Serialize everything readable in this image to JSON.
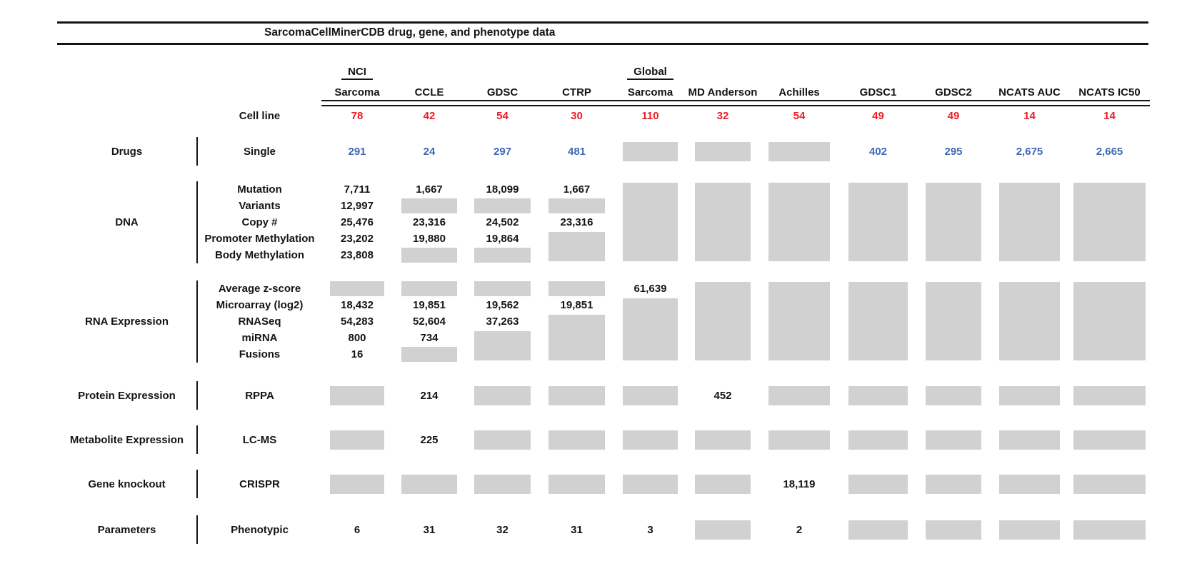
{
  "title": "SarcomaCellMinerCDB drug, gene, and phenotype data",
  "colors": {
    "cell_line_count": "#ed1c24",
    "drug_count": "#3e68b5",
    "missing_data_box": "#d1d1d1",
    "rule": "#141414"
  },
  "columns": [
    {
      "top": "NCI",
      "label": "Sarcoma"
    },
    {
      "top": "",
      "label": "CCLE"
    },
    {
      "top": "",
      "label": "GDSC"
    },
    {
      "top": "",
      "label": "CTRP"
    },
    {
      "top": "Global",
      "label": "Sarcoma"
    },
    {
      "top": "",
      "label": "MD Anderson"
    },
    {
      "top": "",
      "label": "Achilles"
    },
    {
      "top": "",
      "label": "GDSC1"
    },
    {
      "top": "",
      "label": "GDSC2"
    },
    {
      "top": "",
      "label": "NCATS AUC"
    },
    {
      "top": "",
      "label": "NCATS IC50"
    }
  ],
  "cell_line": {
    "label": "Cell line",
    "values": [
      "78",
      "42",
      "54",
      "30",
      "110",
      "32",
      "54",
      "49",
      "49",
      "14",
      "14"
    ]
  },
  "sections": [
    {
      "group": "Drugs",
      "rows": [
        {
          "label": "Single",
          "cells": [
            {
              "v": "291",
              "c": "blue"
            },
            {
              "v": "24",
              "c": "blue"
            },
            {
              "v": "297",
              "c": "blue"
            },
            {
              "v": "481",
              "c": "blue"
            },
            {
              "box": 1
            },
            {
              "box": 1
            },
            {
              "box": 1
            },
            {
              "v": "402",
              "c": "blue"
            },
            {
              "v": "295",
              "c": "blue"
            },
            {
              "v": "2,675",
              "c": "blue"
            },
            {
              "v": "2,665",
              "c": "blue"
            }
          ]
        }
      ]
    },
    {
      "group": "DNA",
      "rows": [
        {
          "label": "Mutation",
          "cells": [
            {
              "v": "7,711"
            },
            {
              "v": "1,667"
            },
            {
              "v": "18,099"
            },
            {
              "v": "1,667"
            },
            {
              "box": 5
            },
            {
              "box": 5
            },
            {
              "box": 5
            },
            {
              "box": 5
            },
            {
              "box": 5
            },
            {
              "box": 5
            },
            {
              "box": 5
            }
          ]
        },
        {
          "label": "Variants",
          "cells": [
            {
              "v": "12,997"
            },
            {
              "box": 1
            },
            {
              "box": 1
            },
            {
              "box": 1
            },
            {
              "skip": 1
            },
            {
              "skip": 1
            },
            {
              "skip": 1
            },
            {
              "skip": 1
            },
            {
              "skip": 1
            },
            {
              "skip": 1
            },
            {
              "skip": 1
            }
          ]
        },
        {
          "label": "Copy #",
          "cells": [
            {
              "v": "25,476"
            },
            {
              "v": "23,316"
            },
            {
              "v": "24,502"
            },
            {
              "v": "23,316"
            },
            {
              "skip": 1
            },
            {
              "skip": 1
            },
            {
              "skip": 1
            },
            {
              "skip": 1
            },
            {
              "skip": 1
            },
            {
              "skip": 1
            },
            {
              "skip": 1
            }
          ]
        },
        {
          "label": "Promoter Methylation",
          "cells": [
            {
              "v": "23,202"
            },
            {
              "v": "19,880"
            },
            {
              "v": "19,864"
            },
            {
              "box": 2
            },
            {
              "skip": 1
            },
            {
              "skip": 1
            },
            {
              "skip": 1
            },
            {
              "skip": 1
            },
            {
              "skip": 1
            },
            {
              "skip": 1
            },
            {
              "skip": 1
            }
          ]
        },
        {
          "label": "Body Methylation",
          "cells": [
            {
              "v": "23,808"
            },
            {
              "box": 1
            },
            {
              "box": 1
            },
            {
              "skip": 1
            },
            {
              "skip": 1
            },
            {
              "skip": 1
            },
            {
              "skip": 1
            },
            {
              "skip": 1
            },
            {
              "skip": 1
            },
            {
              "skip": 1
            },
            {
              "skip": 1
            }
          ]
        }
      ]
    },
    {
      "group": "RNA Expression",
      "rows": [
        {
          "label": "Average z-score",
          "cells": [
            {
              "box": 1
            },
            {
              "box": 1
            },
            {
              "box": 1
            },
            {
              "box": 1
            },
            {
              "v": "61,639"
            },
            {
              "box": 5
            },
            {
              "box": 5
            },
            {
              "box": 5
            },
            {
              "box": 5
            },
            {
              "box": 5
            },
            {
              "box": 5
            }
          ]
        },
        {
          "label": "Microarray (log2)",
          "cells": [
            {
              "v": "18,432"
            },
            {
              "v": "19,851"
            },
            {
              "v": "19,562"
            },
            {
              "v": "19,851"
            },
            {
              "box": 4
            },
            {
              "skip": 1
            },
            {
              "skip": 1
            },
            {
              "skip": 1
            },
            {
              "skip": 1
            },
            {
              "skip": 1
            },
            {
              "skip": 1
            }
          ]
        },
        {
          "label": "RNASeq",
          "cells": [
            {
              "v": "54,283"
            },
            {
              "v": "52,604"
            },
            {
              "v": "37,263"
            },
            {
              "box": 3
            },
            {
              "skip": 1
            },
            {
              "skip": 1
            },
            {
              "skip": 1
            },
            {
              "skip": 1
            },
            {
              "skip": 1
            },
            {
              "skip": 1
            },
            {
              "skip": 1
            }
          ]
        },
        {
          "label": "miRNA",
          "cells": [
            {
              "v": "800"
            },
            {
              "v": "734"
            },
            {
              "box": 2
            },
            {
              "skip": 1
            },
            {
              "skip": 1
            },
            {
              "skip": 1
            },
            {
              "skip": 1
            },
            {
              "skip": 1
            },
            {
              "skip": 1
            },
            {
              "skip": 1
            },
            {
              "skip": 1
            }
          ]
        },
        {
          "label": "Fusions",
          "cells": [
            {
              "v": "16"
            },
            {
              "box": 1
            },
            {
              "skip": 1
            },
            {
              "skip": 1
            },
            {
              "skip": 1
            },
            {
              "skip": 1
            },
            {
              "skip": 1
            },
            {
              "skip": 1
            },
            {
              "skip": 1
            },
            {
              "skip": 1
            },
            {
              "skip": 1
            }
          ]
        }
      ]
    },
    {
      "group": "Protein Expression",
      "rows": [
        {
          "label": "RPPA",
          "cells": [
            {
              "box": 1
            },
            {
              "v": "214"
            },
            {
              "box": 1
            },
            {
              "box": 1
            },
            {
              "box": 1
            },
            {
              "v": "452"
            },
            {
              "box": 1
            },
            {
              "box": 1
            },
            {
              "box": 1
            },
            {
              "box": 1
            },
            {
              "box": 1
            }
          ]
        }
      ]
    },
    {
      "group": "Metabolite Expression",
      "rows": [
        {
          "label": "LC-MS",
          "cells": [
            {
              "box": 1
            },
            {
              "v": "225"
            },
            {
              "box": 1
            },
            {
              "box": 1
            },
            {
              "box": 1
            },
            {
              "box": 1
            },
            {
              "box": 1
            },
            {
              "box": 1
            },
            {
              "box": 1
            },
            {
              "box": 1
            },
            {
              "box": 1
            }
          ]
        }
      ]
    },
    {
      "group": "Gene knockout",
      "rows": [
        {
          "label": "CRISPR",
          "cells": [
            {
              "box": 1
            },
            {
              "box": 1
            },
            {
              "box": 1
            },
            {
              "box": 1
            },
            {
              "box": 1
            },
            {
              "box": 1
            },
            {
              "v": "18,119"
            },
            {
              "box": 1
            },
            {
              "box": 1
            },
            {
              "box": 1
            },
            {
              "box": 1
            }
          ]
        }
      ]
    },
    {
      "group": "Parameters",
      "rows": [
        {
          "label": "Phenotypic",
          "cells": [
            {
              "v": "6"
            },
            {
              "v": "31"
            },
            {
              "v": "32"
            },
            {
              "v": "31"
            },
            {
              "v": "3"
            },
            {
              "box": 1
            },
            {
              "v": "2"
            },
            {
              "box": 1
            },
            {
              "box": 1
            },
            {
              "box": 1
            },
            {
              "box": 1
            }
          ]
        }
      ]
    }
  ]
}
